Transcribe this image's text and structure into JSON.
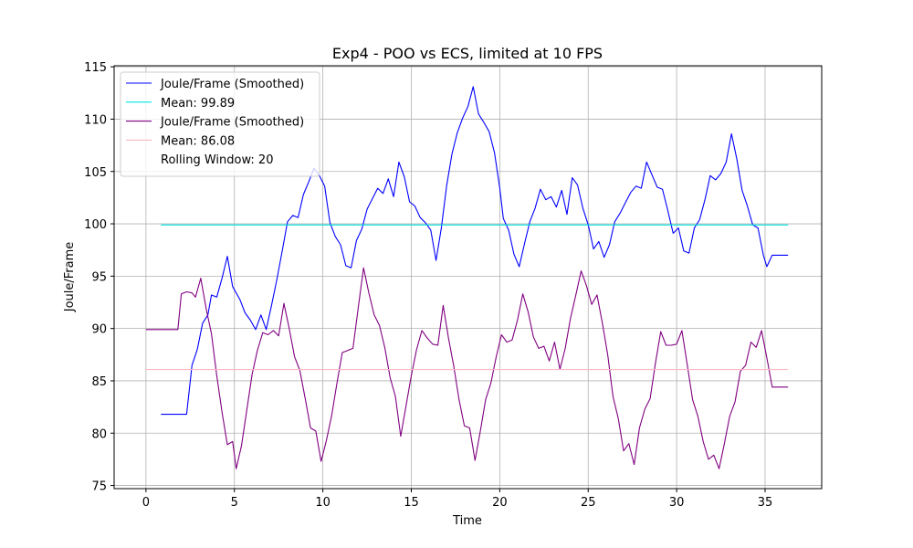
{
  "chart_data": {
    "type": "line",
    "title": "Exp4 - POO vs ECS, limited at 10 FPS",
    "xlabel": "Time",
    "ylabel": "Joule/Frame",
    "xlim": [
      -1.8,
      38.2
    ],
    "ylim": [
      74.7,
      115.1
    ],
    "xticks": [
      0,
      5,
      10,
      15,
      20,
      25,
      30,
      35
    ],
    "yticks": [
      75,
      80,
      85,
      90,
      95,
      100,
      105,
      110,
      115
    ],
    "grid": true,
    "legend_position": "top-left",
    "legend_extra": "Rolling Window: 20",
    "series": [
      {
        "name": "Joule/Frame (Smoothed)",
        "color": "#0000ff",
        "points": [
          [
            0.85,
            81.8
          ],
          [
            2.3,
            81.8
          ],
          [
            2.6,
            86.5
          ],
          [
            2.9,
            88.0
          ],
          [
            3.2,
            90.5
          ],
          [
            3.5,
            91.3
          ],
          [
            3.7,
            93.2
          ],
          [
            4.0,
            93.0
          ],
          [
            4.3,
            94.8
          ],
          [
            4.6,
            96.9
          ],
          [
            4.9,
            94.0
          ],
          [
            5.3,
            92.8
          ],
          [
            5.6,
            91.5
          ],
          [
            5.9,
            90.8
          ],
          [
            6.2,
            89.9
          ],
          [
            6.5,
            91.3
          ],
          [
            6.8,
            89.9
          ],
          [
            7.1,
            92.2
          ],
          [
            7.4,
            94.7
          ],
          [
            7.7,
            97.4
          ],
          [
            8.0,
            100.2
          ],
          [
            8.3,
            100.8
          ],
          [
            8.6,
            100.6
          ],
          [
            8.9,
            102.8
          ],
          [
            9.2,
            104.0
          ],
          [
            9.5,
            105.3
          ],
          [
            9.8,
            104.6
          ],
          [
            10.1,
            103.6
          ],
          [
            10.4,
            100.1
          ],
          [
            10.7,
            98.8
          ],
          [
            11.0,
            98.0
          ],
          [
            11.3,
            96.0
          ],
          [
            11.6,
            95.8
          ],
          [
            11.9,
            98.4
          ],
          [
            12.2,
            99.5
          ],
          [
            12.5,
            101.4
          ],
          [
            12.8,
            102.4
          ],
          [
            13.1,
            103.4
          ],
          [
            13.4,
            102.9
          ],
          [
            13.7,
            104.3
          ],
          [
            14.0,
            102.6
          ],
          [
            14.3,
            105.9
          ],
          [
            14.6,
            104.5
          ],
          [
            14.9,
            102.1
          ],
          [
            15.2,
            101.7
          ],
          [
            15.5,
            100.6
          ],
          [
            15.8,
            100.1
          ],
          [
            16.1,
            99.4
          ],
          [
            16.4,
            96.5
          ],
          [
            16.7,
            99.6
          ],
          [
            17.0,
            103.7
          ],
          [
            17.3,
            106.7
          ],
          [
            17.6,
            108.7
          ],
          [
            17.9,
            110.1
          ],
          [
            18.2,
            111.2
          ],
          [
            18.5,
            113.1
          ],
          [
            18.8,
            110.5
          ],
          [
            19.1,
            109.7
          ],
          [
            19.4,
            108.8
          ],
          [
            19.7,
            106.8
          ],
          [
            20.0,
            103.4
          ],
          [
            20.2,
            100.5
          ],
          [
            20.5,
            99.4
          ],
          [
            20.8,
            97.1
          ],
          [
            21.1,
            95.9
          ],
          [
            21.4,
            98.1
          ],
          [
            21.7,
            100.2
          ],
          [
            22.0,
            101.5
          ],
          [
            22.3,
            103.3
          ],
          [
            22.6,
            102.3
          ],
          [
            22.9,
            102.6
          ],
          [
            23.2,
            101.6
          ],
          [
            23.5,
            103.2
          ],
          [
            23.8,
            100.9
          ],
          [
            24.1,
            104.4
          ],
          [
            24.4,
            103.7
          ],
          [
            24.7,
            101.5
          ],
          [
            25.0,
            99.9
          ],
          [
            25.3,
            97.6
          ],
          [
            25.6,
            98.3
          ],
          [
            25.9,
            96.8
          ],
          [
            26.2,
            98.0
          ],
          [
            26.5,
            100.2
          ],
          [
            26.8,
            101.0
          ],
          [
            27.1,
            102.0
          ],
          [
            27.4,
            103.0
          ],
          [
            27.7,
            103.6
          ],
          [
            28.0,
            103.4
          ],
          [
            28.3,
            105.9
          ],
          [
            28.6,
            104.7
          ],
          [
            28.9,
            103.5
          ],
          [
            29.2,
            103.3
          ],
          [
            29.5,
            101.3
          ],
          [
            29.8,
            99.1
          ],
          [
            30.1,
            99.6
          ],
          [
            30.4,
            97.4
          ],
          [
            30.7,
            97.2
          ],
          [
            31.0,
            99.6
          ],
          [
            31.3,
            100.4
          ],
          [
            31.6,
            102.3
          ],
          [
            31.9,
            104.6
          ],
          [
            32.2,
            104.2
          ],
          [
            32.5,
            104.8
          ],
          [
            32.8,
            105.9
          ],
          [
            33.1,
            108.6
          ],
          [
            33.4,
            106.2
          ],
          [
            33.7,
            103.2
          ],
          [
            34.0,
            101.7
          ],
          [
            34.3,
            99.9
          ],
          [
            34.6,
            99.6
          ],
          [
            34.9,
            97.0
          ],
          [
            35.1,
            95.9
          ],
          [
            35.4,
            97.0
          ],
          [
            36.3,
            97.0
          ]
        ]
      },
      {
        "name": "Mean: 99.89",
        "color": "#00e5e5",
        "points": [
          [
            0.85,
            99.89
          ],
          [
            36.3,
            99.89
          ]
        ]
      },
      {
        "name": "Joule/Frame (Smoothed)",
        "color": "#800080",
        "points": [
          [
            0.0,
            89.9
          ],
          [
            1.8,
            89.9
          ],
          [
            2.0,
            93.3
          ],
          [
            2.3,
            93.5
          ],
          [
            2.6,
            93.4
          ],
          [
            2.8,
            93.0
          ],
          [
            3.1,
            94.8
          ],
          [
            3.4,
            91.9
          ],
          [
            3.7,
            89.5
          ],
          [
            4.0,
            85.5
          ],
          [
            4.3,
            82.0
          ],
          [
            4.6,
            78.9
          ],
          [
            4.9,
            79.2
          ],
          [
            5.1,
            76.6
          ],
          [
            5.4,
            78.8
          ],
          [
            5.7,
            82.2
          ],
          [
            6.0,
            85.6
          ],
          [
            6.3,
            87.9
          ],
          [
            6.6,
            89.6
          ],
          [
            6.9,
            89.4
          ],
          [
            7.2,
            89.8
          ],
          [
            7.5,
            89.3
          ],
          [
            7.8,
            92.4
          ],
          [
            8.1,
            90.0
          ],
          [
            8.4,
            87.3
          ],
          [
            8.7,
            86.0
          ],
          [
            9.0,
            83.3
          ],
          [
            9.3,
            80.5
          ],
          [
            9.6,
            80.2
          ],
          [
            9.9,
            77.3
          ],
          [
            10.2,
            79.3
          ],
          [
            10.5,
            81.7
          ],
          [
            10.8,
            84.8
          ],
          [
            11.1,
            87.7
          ],
          [
            11.4,
            87.9
          ],
          [
            11.7,
            88.1
          ],
          [
            12.0,
            92.0
          ],
          [
            12.3,
            95.8
          ],
          [
            12.6,
            93.4
          ],
          [
            12.9,
            91.3
          ],
          [
            13.2,
            90.3
          ],
          [
            13.5,
            88.2
          ],
          [
            13.8,
            85.3
          ],
          [
            14.1,
            83.5
          ],
          [
            14.4,
            79.7
          ],
          [
            14.7,
            82.6
          ],
          [
            15.0,
            85.5
          ],
          [
            15.3,
            88.0
          ],
          [
            15.6,
            89.8
          ],
          [
            15.9,
            89.1
          ],
          [
            16.2,
            88.5
          ],
          [
            16.5,
            88.4
          ],
          [
            16.8,
            92.2
          ],
          [
            17.1,
            89.1
          ],
          [
            17.4,
            86.4
          ],
          [
            17.7,
            83.2
          ],
          [
            18.0,
            80.7
          ],
          [
            18.3,
            80.5
          ],
          [
            18.6,
            77.4
          ],
          [
            18.9,
            80.2
          ],
          [
            19.2,
            83.2
          ],
          [
            19.5,
            84.8
          ],
          [
            19.8,
            87.3
          ],
          [
            20.1,
            89.4
          ],
          [
            20.4,
            88.7
          ],
          [
            20.7,
            88.9
          ],
          [
            21.0,
            90.8
          ],
          [
            21.3,
            93.3
          ],
          [
            21.6,
            91.6
          ],
          [
            21.9,
            89.2
          ],
          [
            22.2,
            88.1
          ],
          [
            22.5,
            88.3
          ],
          [
            22.8,
            86.9
          ],
          [
            23.1,
            88.7
          ],
          [
            23.4,
            86.1
          ],
          [
            23.7,
            88.1
          ],
          [
            24.0,
            91.0
          ],
          [
            24.3,
            93.2
          ],
          [
            24.6,
            95.5
          ],
          [
            24.9,
            94.1
          ],
          [
            25.2,
            92.3
          ],
          [
            25.5,
            93.2
          ],
          [
            25.8,
            90.5
          ],
          [
            26.1,
            87.5
          ],
          [
            26.4,
            83.5
          ],
          [
            26.7,
            81.4
          ],
          [
            27.0,
            78.3
          ],
          [
            27.3,
            79.0
          ],
          [
            27.6,
            77.0
          ],
          [
            27.9,
            80.5
          ],
          [
            28.2,
            82.3
          ],
          [
            28.5,
            83.3
          ],
          [
            28.8,
            86.7
          ],
          [
            29.1,
            89.7
          ],
          [
            29.4,
            88.4
          ],
          [
            29.7,
            88.4
          ],
          [
            30.0,
            88.5
          ],
          [
            30.3,
            89.8
          ],
          [
            30.6,
            86.5
          ],
          [
            30.9,
            83.2
          ],
          [
            31.2,
            81.6
          ],
          [
            31.5,
            79.2
          ],
          [
            31.8,
            77.5
          ],
          [
            32.1,
            77.9
          ],
          [
            32.4,
            76.6
          ],
          [
            32.7,
            79.0
          ],
          [
            33.0,
            81.6
          ],
          [
            33.3,
            83.0
          ],
          [
            33.6,
            85.9
          ],
          [
            33.9,
            86.5
          ],
          [
            34.2,
            88.7
          ],
          [
            34.5,
            88.2
          ],
          [
            34.8,
            89.8
          ],
          [
            35.1,
            87.2
          ],
          [
            35.4,
            84.4
          ],
          [
            36.3,
            84.4
          ]
        ]
      },
      {
        "name": "Mean: 86.08",
        "color": "#ffb6c1",
        "points": [
          [
            0.0,
            86.08
          ],
          [
            36.3,
            86.08
          ]
        ]
      }
    ]
  }
}
